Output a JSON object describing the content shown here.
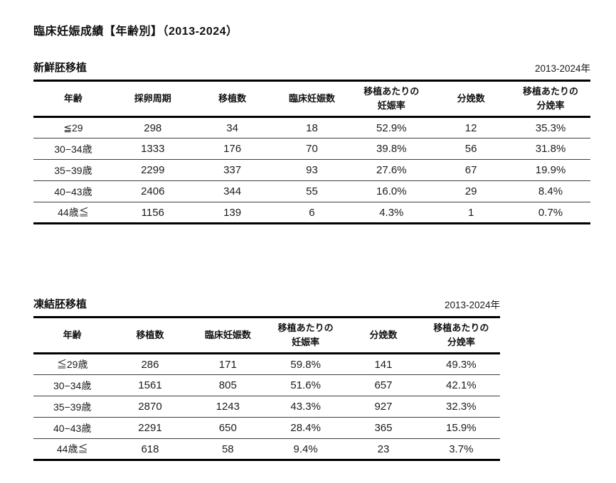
{
  "page": {
    "title": "臨床妊娠成績【年齢別】（2013-2024）"
  },
  "fresh": {
    "label": "新鮮胚移植",
    "period": "2013-2024年",
    "headers": [
      "年齢",
      "採卵周期",
      "移植数",
      "臨床妊娠数",
      "移植あたりの\n妊娠率",
      "分娩数",
      "移植あたりの\n分娩率"
    ],
    "rows": [
      [
        "≦29",
        "298",
        "34",
        "18",
        "52.9%",
        "12",
        "35.3%"
      ],
      [
        "30−34歳",
        "1333",
        "176",
        "70",
        "39.8%",
        "56",
        "31.8%"
      ],
      [
        "35−39歳",
        "2299",
        "337",
        "93",
        "27.6%",
        "67",
        "19.9%"
      ],
      [
        "40−43歳",
        "2406",
        "344",
        "55",
        "16.0%",
        "29",
        "8.4%"
      ],
      [
        "44歳≦",
        "1156",
        "139",
        "6",
        "4.3%",
        "1",
        "0.7%"
      ]
    ]
  },
  "frozen": {
    "label": "凍結胚移植",
    "period": "2013-2024年",
    "headers": [
      "年齢",
      "移植数",
      "臨床妊娠数",
      "移植あたりの\n妊娠率",
      "分娩数",
      "移植あたりの\n分娩率"
    ],
    "rows": [
      [
        "≦29歳",
        "286",
        "171",
        "59.8%",
        "141",
        "49.3%"
      ],
      [
        "30−34歳",
        "1561",
        "805",
        "51.6%",
        "657",
        "42.1%"
      ],
      [
        "35−39歳",
        "2870",
        "1243",
        "43.3%",
        "927",
        "32.3%"
      ],
      [
        "40−43歳",
        "2291",
        "650",
        "28.4%",
        "365",
        "15.9%"
      ],
      [
        "44歳≦",
        "618",
        "58",
        "9.4%",
        "23",
        "3.7%"
      ]
    ]
  }
}
